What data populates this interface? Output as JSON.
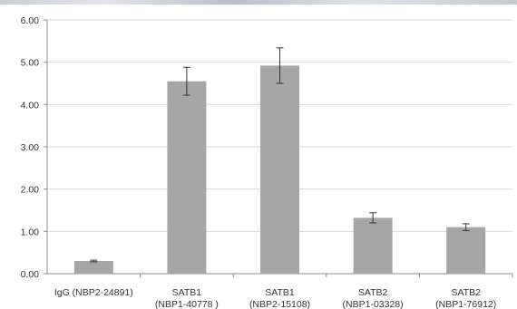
{
  "chart_data": {
    "type": "bar",
    "categories": [
      [
        "IgG (NBP2-24891)"
      ],
      [
        "SATB1",
        "(NBP1-40778 )"
      ],
      [
        "SATB1",
        "(NBP2-15108)"
      ],
      [
        "SATB2",
        "(NBP1-03328)"
      ],
      [
        "SATB2",
        "(NBP1-76912)"
      ]
    ],
    "values": [
      0.3,
      4.55,
      4.92,
      1.32,
      1.1
    ],
    "error_bars": [
      0.02,
      0.33,
      0.42,
      0.12,
      0.08
    ],
    "ylim": [
      0,
      6
    ],
    "yticks": [
      "0.00",
      "1.00",
      "2.00",
      "3.00",
      "4.00",
      "5.00",
      "6.00"
    ],
    "title": "",
    "xlabel": "",
    "ylabel": "",
    "grid": true,
    "legend": "none",
    "colors": {
      "bar": "#a6a6a6",
      "gridline": "#d9d9d9",
      "axis": "#8c8c8c",
      "error_bar": "#333333"
    }
  }
}
